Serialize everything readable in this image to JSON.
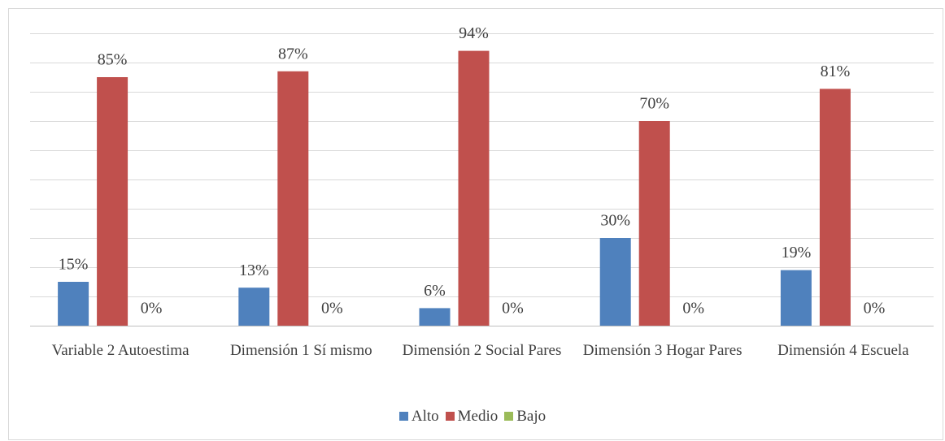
{
  "chart_data": {
    "type": "bar",
    "categories": [
      "Variable 2 Autoestima",
      "Dimensión 1 Sí mismo",
      "Dimensión 2 Social Pares",
      "Dimensión 3 Hogar Pares",
      "Dimensión 4 Escuela"
    ],
    "series": [
      {
        "name": "Alto",
        "color": "#4f81bd",
        "values": [
          15,
          13,
          6,
          30,
          19
        ],
        "value_labels": [
          "15%",
          "13%",
          "6%",
          "30%",
          "19%"
        ]
      },
      {
        "name": "Medio",
        "color": "#c0504d",
        "values": [
          85,
          87,
          94,
          70,
          81
        ],
        "value_labels": [
          "85%",
          "87%",
          "94%",
          "70%",
          "81%"
        ]
      },
      {
        "name": "Bajo",
        "color": "#9bbb59",
        "values": [
          0,
          0,
          0,
          0,
          0
        ],
        "value_labels": [
          "0%",
          "0%",
          "0%",
          "0%",
          "0%"
        ]
      }
    ],
    "ylim": [
      0,
      100
    ],
    "yticks": [
      0,
      10,
      20,
      30,
      40,
      50,
      60,
      70,
      80,
      90,
      100
    ],
    "grid": true,
    "legend": "bottom"
  }
}
